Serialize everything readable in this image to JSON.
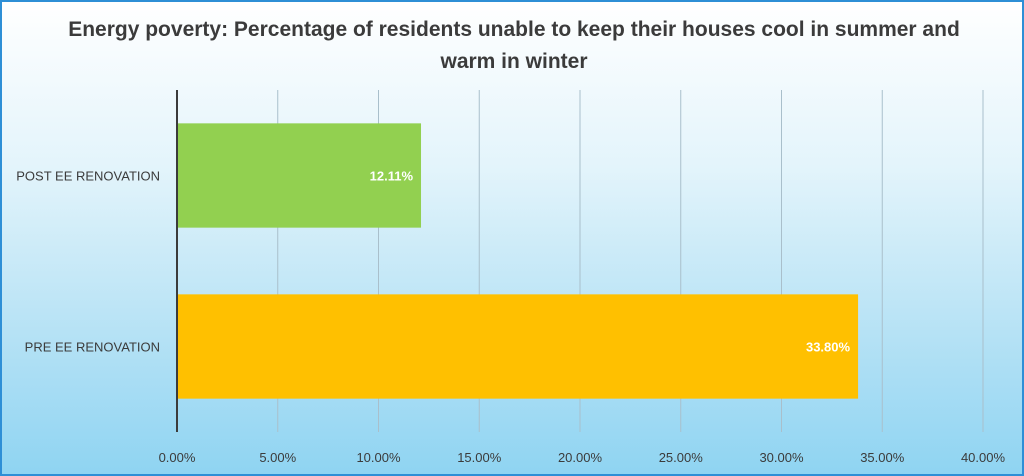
{
  "chart_data": {
    "type": "bar",
    "orientation": "horizontal",
    "title": "Energy poverty: Percentage of residents unable to keep their houses cool in summer and  warm in winter",
    "categories": [
      "POST EE RENOVATION",
      "PRE EE RENOVATION"
    ],
    "values": [
      12.11,
      33.8
    ],
    "value_labels": [
      "12.11%",
      "33.80%"
    ],
    "bar_colors": [
      "#92d050",
      "#ffc000"
    ],
    "xlim": [
      0,
      40
    ],
    "x_ticks": [
      0,
      5,
      10,
      15,
      20,
      25,
      30,
      35,
      40
    ],
    "x_tick_labels": [
      "0.00%",
      "5.00%",
      "10.00%",
      "15.00%",
      "20.00%",
      "25.00%",
      "30.00%",
      "35.00%",
      "40.00%"
    ],
    "grid": true,
    "legend": "none"
  }
}
